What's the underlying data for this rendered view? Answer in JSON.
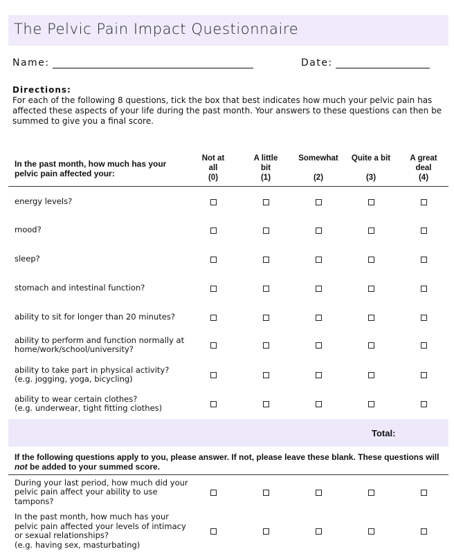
{
  "title": "The Pelvic Pain Impact Questionnaire",
  "name_label": "Name:",
  "date_label": "Date:",
  "directions": {
    "heading": "Directions:",
    "text": "For each of the following 8 questions, tick the box that best indicates how much your pelvic pain has affected these aspects of your life during the past month. Your answers to these questions can then be summed to give you a final score."
  },
  "table": {
    "question_header": "In the past month, how much has your pelvic pain affected your:",
    "columns": [
      {
        "lines": [
          "Not at",
          "all"
        ],
        "score": "(0)"
      },
      {
        "lines": [
          "A little",
          "bit"
        ],
        "score": "(1)"
      },
      {
        "lines": [
          "Somewhat"
        ],
        "score": "(2)"
      },
      {
        "lines": [
          "Quite a bit"
        ],
        "score": "(3)"
      },
      {
        "lines": [
          "A great",
          "deal"
        ],
        "score": "(4)"
      }
    ],
    "rows": [
      [
        "energy levels?"
      ],
      [
        "mood?"
      ],
      [
        "sleep?"
      ],
      [
        "stomach and intestinal function?"
      ],
      [
        "ability to sit for longer than 20 minutes?"
      ],
      [
        "ability to perform and function normally at",
        "home/work/school/university?"
      ],
      [
        "ability to take part in physical activity?",
        "(e.g. jogging, yoga, bicycling)"
      ],
      [
        "ability to wear certain clothes?",
        "(e.g. underwear, tight fitting clothes)"
      ]
    ],
    "total_label": "Total:"
  },
  "optional": {
    "instruction": [
      "If the following questions apply to you, please answer. If not, please leave these blank. These questions will ",
      "not",
      " be added to your summed score."
    ],
    "rows": [
      [
        "During your last period, how much did your",
        "pelvic pain affect your ability to use",
        "tampons?"
      ],
      [
        "In the past  month, how much has your",
        "pelvic pain affected your levels of intimacy",
        "or sexual relationships?",
        "(e.g. having sex, masturbating)"
      ]
    ]
  }
}
